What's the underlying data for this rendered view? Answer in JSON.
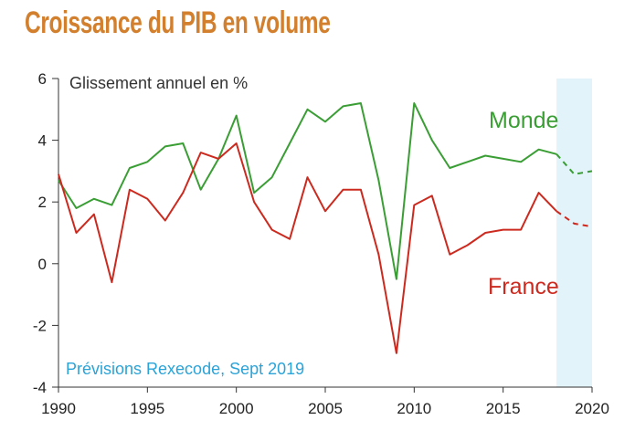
{
  "title": "Croissance du PIB en volume",
  "chart_data": {
    "type": "line",
    "title": "Croissance du PIB en volume",
    "subtitle": "Glissement annuel en %",
    "xlabel": "",
    "ylabel": "Glissement annuel en %",
    "xlim": [
      1990,
      2020
    ],
    "ylim": [
      -4,
      6
    ],
    "x_ticks": [
      1990,
      1995,
      2000,
      2005,
      2010,
      2015,
      2020
    ],
    "x_tick_labels": [
      "1990",
      "1995",
      "2000",
      "2005",
      "2010",
      "2015",
      "2020"
    ],
    "y_ticks": [
      -4,
      -2,
      0,
      2,
      4,
      6
    ],
    "y_tick_labels": [
      "-4",
      "-2",
      "0",
      "2",
      "4",
      "6"
    ],
    "forecast_region": {
      "from": 2018,
      "to": 2020,
      "label": "Prévisions Rexecode, Sept 2019",
      "color": "#e3f3fa"
    },
    "series": [
      {
        "name": "Monde",
        "color": "#3a9e35",
        "x": [
          1990,
          1991,
          1992,
          1993,
          1994,
          1995,
          1996,
          1997,
          1998,
          1999,
          2000,
          2001,
          2002,
          2003,
          2004,
          2005,
          2006,
          2007,
          2008,
          2009,
          2010,
          2011,
          2012,
          2013,
          2014,
          2015,
          2016,
          2017,
          2018
        ],
        "values": [
          2.7,
          1.8,
          2.1,
          1.9,
          3.1,
          3.3,
          3.8,
          3.9,
          2.4,
          3.4,
          4.8,
          2.3,
          2.8,
          3.9,
          5.0,
          4.6,
          5.1,
          5.2,
          2.7,
          -0.5,
          5.2,
          4.0,
          3.1,
          3.3,
          3.5,
          3.4,
          3.3,
          3.7,
          3.55
        ],
        "forecast_x": [
          2018,
          2019,
          2020
        ],
        "forecast_values": [
          3.55,
          2.9,
          3.0
        ]
      },
      {
        "name": "France",
        "color": "#cc2a1f",
        "x": [
          1990,
          1991,
          1992,
          1993,
          1994,
          1995,
          1996,
          1997,
          1998,
          1999,
          2000,
          2001,
          2002,
          2003,
          2004,
          2005,
          2006,
          2007,
          2008,
          2009,
          2010,
          2011,
          2012,
          2013,
          2014,
          2015,
          2016,
          2017,
          2018
        ],
        "values": [
          2.9,
          1.0,
          1.6,
          -0.6,
          2.4,
          2.1,
          1.4,
          2.3,
          3.6,
          3.4,
          3.9,
          2.0,
          1.1,
          0.8,
          2.8,
          1.7,
          2.4,
          2.4,
          0.3,
          -2.9,
          1.9,
          2.2,
          0.3,
          0.6,
          1.0,
          1.1,
          1.1,
          2.3,
          1.7
        ],
        "forecast_x": [
          2018,
          2019,
          2020
        ],
        "forecast_values": [
          1.7,
          1.3,
          1.2
        ]
      }
    ]
  }
}
